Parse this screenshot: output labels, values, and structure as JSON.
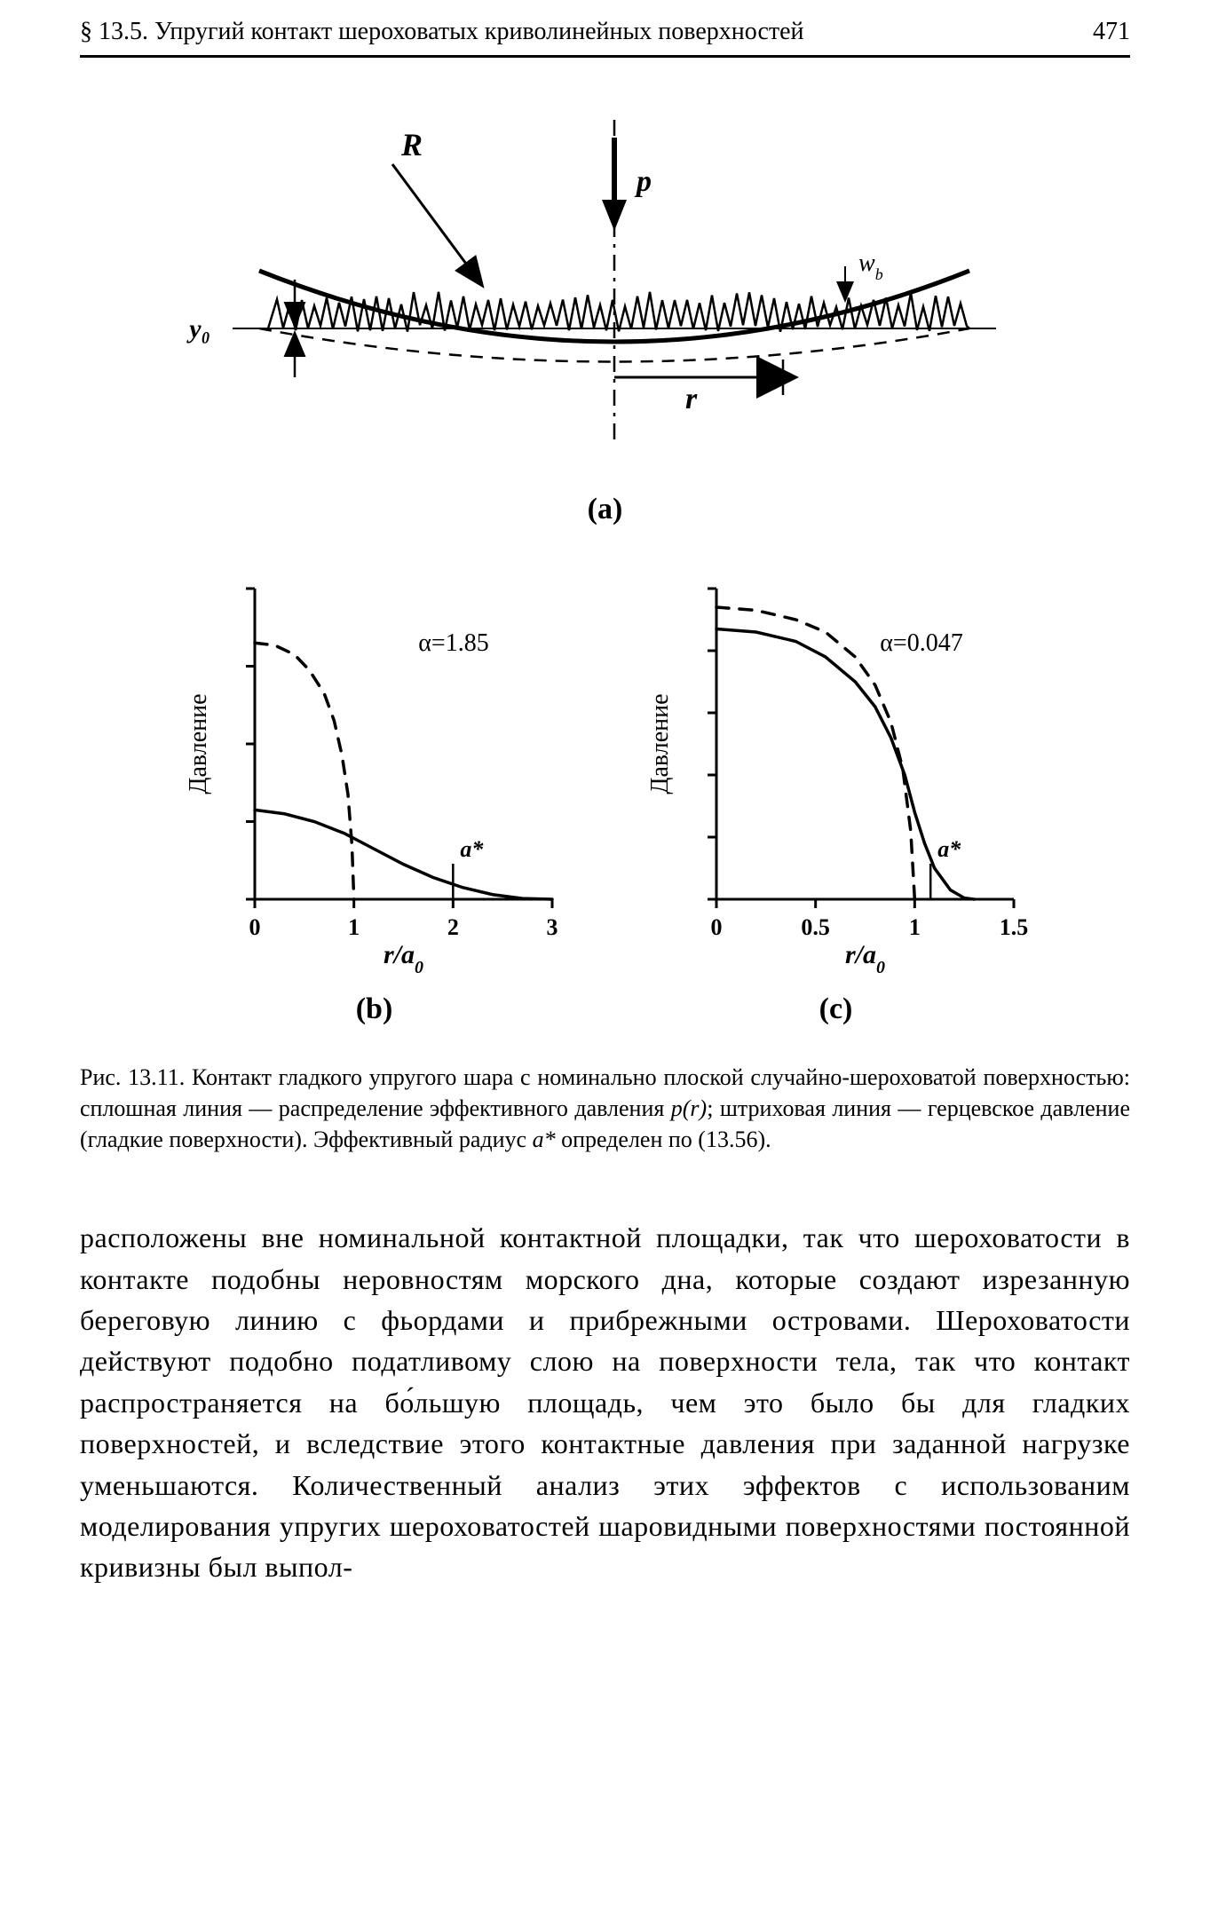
{
  "header": {
    "section": "§ 13.5. Упругий контакт шероховатых криволинейных поверхностей",
    "page_number": "471"
  },
  "figure_a": {
    "type": "diagram",
    "label": "(a)",
    "annotations": {
      "R": "R",
      "p": "p",
      "wb": "w_b",
      "y0": "y₀",
      "r": "r"
    },
    "colors": {
      "stroke": "#000000",
      "background": "#ffffff"
    },
    "line_width_main": 3,
    "line_width_dash": 2.5
  },
  "chart_b": {
    "type": "line",
    "label": "(b)",
    "alpha_label": "α=1.85",
    "xlabel": "r/a₀",
    "ylabel": "Давление",
    "xlim": [
      0,
      3
    ],
    "xticks": [
      0,
      1,
      2,
      3
    ],
    "ylim": [
      0,
      4
    ],
    "ytick_count": 5,
    "a_star": "a*",
    "a_star_x": 2.0,
    "series": [
      {
        "name": "hertz-dashed",
        "style": "dashed",
        "color": "#000000",
        "width": 3.5,
        "points": [
          [
            0,
            3.3
          ],
          [
            0.2,
            3.27
          ],
          [
            0.4,
            3.15
          ],
          [
            0.55,
            2.95
          ],
          [
            0.7,
            2.65
          ],
          [
            0.8,
            2.3
          ],
          [
            0.88,
            1.85
          ],
          [
            0.94,
            1.35
          ],
          [
            0.98,
            0.7
          ],
          [
            1.0,
            0
          ]
        ]
      },
      {
        "name": "effective-solid",
        "style": "solid",
        "color": "#000000",
        "width": 3.5,
        "points": [
          [
            0,
            1.15
          ],
          [
            0.3,
            1.1
          ],
          [
            0.6,
            1.0
          ],
          [
            0.9,
            0.85
          ],
          [
            1.2,
            0.65
          ],
          [
            1.5,
            0.45
          ],
          [
            1.8,
            0.28
          ],
          [
            2.1,
            0.15
          ],
          [
            2.4,
            0.06
          ],
          [
            2.7,
            0.01
          ],
          [
            3.0,
            0
          ]
        ]
      }
    ],
    "axis_color": "#000000",
    "axis_width": 3,
    "fontsize_label": 28,
    "fontsize_ticks": 26
  },
  "chart_c": {
    "type": "line",
    "label": "(c)",
    "alpha_label": "α=0.047",
    "xlabel": "r/a₀",
    "ylabel": "Давление",
    "xlim": [
      0,
      1.5
    ],
    "xticks": [
      0,
      0.5,
      1.0,
      1.5
    ],
    "ylim": [
      0,
      5
    ],
    "ytick_count": 6,
    "a_star": "a*",
    "a_star_x": 1.08,
    "series": [
      {
        "name": "hertz-dashed",
        "style": "dashed",
        "color": "#000000",
        "width": 3.5,
        "points": [
          [
            0,
            4.7
          ],
          [
            0.2,
            4.65
          ],
          [
            0.4,
            4.5
          ],
          [
            0.55,
            4.3
          ],
          [
            0.7,
            3.9
          ],
          [
            0.8,
            3.45
          ],
          [
            0.88,
            2.85
          ],
          [
            0.94,
            2.1
          ],
          [
            0.98,
            1.1
          ],
          [
            1.0,
            0
          ]
        ]
      },
      {
        "name": "effective-solid",
        "style": "solid",
        "color": "#000000",
        "width": 3.5,
        "points": [
          [
            0,
            4.35
          ],
          [
            0.2,
            4.3
          ],
          [
            0.4,
            4.15
          ],
          [
            0.55,
            3.9
          ],
          [
            0.7,
            3.5
          ],
          [
            0.8,
            3.1
          ],
          [
            0.88,
            2.6
          ],
          [
            0.95,
            2.0
          ],
          [
            1.0,
            1.4
          ],
          [
            1.05,
            0.9
          ],
          [
            1.1,
            0.5
          ],
          [
            1.18,
            0.15
          ],
          [
            1.25,
            0.02
          ],
          [
            1.3,
            0
          ]
        ]
      }
    ],
    "axis_color": "#000000",
    "axis_width": 3,
    "fontsize_label": 28,
    "fontsize_ticks": 26
  },
  "caption": {
    "prefix": "Рис. 13.11.",
    "text1": " Контакт гладкого упругого шара с номинально плоской случайно-шероховатой поверхностью: сплошная линия — распределение эффективного давления ",
    "pr": "p(r)",
    "text2": "; штриховая линия — герцевское давление (гладкие поверхности). Эффективный радиус ",
    "astar": "a*",
    "text3": " определен по (13.56)."
  },
  "body": {
    "text": "расположены вне номинальной контактной площадки, так что шероховатости в контакте подобны неровностям морского дна, которые создают изрезанную береговую линию с фьордами и прибрежными островами. Шероховатости действуют подобно податливому слою на поверхности тела, так что контакт распространяется на бо́льшую площадь, чем это было бы для гладких поверхностей, и вследствие этого контактные давления при заданной нагрузке уменьшаются. Количественный анализ этих эффектов с использованим моделирования упругих шероховатостей шаровидными поверхностями постоянной кривизны был выпол-"
  }
}
